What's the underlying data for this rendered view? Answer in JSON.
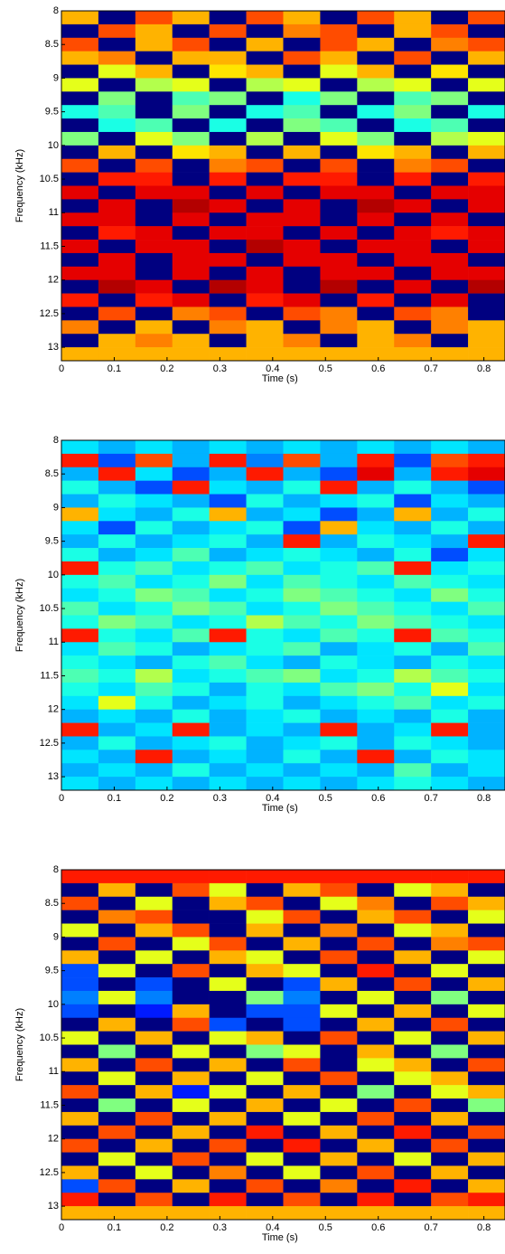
{
  "chart_data": [
    {
      "type": "heatmap",
      "xlabel": "Time (s)",
      "ylabel": "Frequency (kHz)",
      "colormap": "jet",
      "yreverse": true,
      "xlim": [
        0,
        0.84
      ],
      "ylim": [
        8,
        13.2
      ],
      "xticks": [
        0,
        0.1,
        0.2,
        0.3,
        0.4,
        0.5,
        0.6,
        0.7,
        0.8
      ],
      "yticks": [
        8,
        8.5,
        9,
        9.5,
        10,
        10.5,
        11,
        11.5,
        12,
        12.5,
        13
      ],
      "xbins": [
        0,
        0.07,
        0.14,
        0.21,
        0.28,
        0.35,
        0.42,
        0.49,
        0.56,
        0.63,
        0.7,
        0.77,
        0.84
      ],
      "ybins": [
        8,
        8.2,
        8.4,
        8.6,
        8.8,
        9,
        9.2,
        9.4,
        9.6,
        9.8,
        10,
        10.2,
        10.4,
        10.6,
        10.8,
        11,
        11.2,
        11.4,
        11.6,
        11.8,
        12,
        12.2,
        12.4,
        12.6,
        12.8,
        13,
        13.2
      ],
      "values": [
        [
          0.7,
          0,
          0.8,
          0.7,
          0,
          0.8,
          0.7,
          0,
          0.8,
          0.7,
          0,
          0.8
        ],
        [
          0,
          0.8,
          0.7,
          0,
          0.8,
          0,
          0.75,
          0.8,
          0,
          0.7,
          0.8,
          0
        ],
        [
          0.8,
          0,
          0.7,
          0.8,
          0,
          0.7,
          0,
          0.8,
          0.7,
          0,
          0.75,
          0.8
        ],
        [
          0.7,
          0.75,
          0,
          0.7,
          0.7,
          0,
          0.8,
          0.7,
          0,
          0.8,
          0,
          0.7
        ],
        [
          0,
          0.6,
          0.7,
          0,
          0.65,
          0.7,
          0,
          0.6,
          0.7,
          0,
          0.65,
          0
        ],
        [
          0.6,
          0,
          0.55,
          0.6,
          0,
          0.55,
          0.6,
          0,
          0.55,
          0.6,
          0,
          0.6
        ],
        [
          0,
          0.5,
          0,
          0.45,
          0.5,
          0,
          0.4,
          0.5,
          0,
          0.45,
          0.5,
          0
        ],
        [
          0.4,
          0.45,
          0,
          0.5,
          0,
          0.4,
          0.45,
          0,
          0.4,
          0.5,
          0,
          0.4
        ],
        [
          0,
          0.4,
          0.45,
          0,
          0.4,
          0,
          0.5,
          0.45,
          0,
          0.4,
          0.45,
          0
        ],
        [
          0.5,
          0,
          0.6,
          0.5,
          0,
          0.55,
          0,
          0.6,
          0.5,
          0,
          0.55,
          0.6
        ],
        [
          0,
          0.7,
          0,
          0.65,
          0.7,
          0,
          0.7,
          0,
          0.65,
          0.7,
          0,
          0.7
        ],
        [
          0.8,
          0,
          0.8,
          0,
          0.75,
          0.8,
          0,
          0.8,
          0,
          0.75,
          0.8,
          0
        ],
        [
          0,
          0.85,
          0.85,
          0,
          0.85,
          0,
          0.85,
          0.85,
          0,
          0.85,
          0,
          0.85
        ],
        [
          0.9,
          0,
          0.9,
          0.9,
          0,
          0.9,
          0,
          0.9,
          0.9,
          0,
          0.9,
          0.9
        ],
        [
          0,
          0.9,
          0,
          0.95,
          0.9,
          0,
          0.9,
          0,
          0.95,
          0.9,
          0,
          0.9
        ],
        [
          0.9,
          0.9,
          0,
          0.9,
          0,
          0.9,
          0.9,
          0,
          0.9,
          0,
          0.9,
          0
        ],
        [
          0,
          0.85,
          0.9,
          0,
          0.9,
          0.9,
          0,
          0.9,
          0,
          0.9,
          0.85,
          0.9
        ],
        [
          0.9,
          0,
          0.9,
          0.9,
          0,
          0.95,
          0.9,
          0,
          0.9,
          0.9,
          0,
          0.9
        ],
        [
          0,
          0.9,
          0,
          0.9,
          0.9,
          0,
          0.9,
          0.9,
          0,
          0.9,
          0.9,
          0
        ],
        [
          0.9,
          0.9,
          0,
          0.9,
          0,
          0.9,
          0,
          0.9,
          0.9,
          0,
          0.9,
          0.9
        ],
        [
          0,
          0.95,
          0.9,
          0,
          0.95,
          0.9,
          0,
          0.95,
          0,
          0.9,
          0,
          0.95
        ],
        [
          0.85,
          0,
          0.85,
          0.9,
          0,
          0.85,
          0.9,
          0,
          0.85,
          0,
          0.9,
          0
        ],
        [
          0,
          0.8,
          0,
          0.75,
          0.8,
          0,
          0.8,
          0.75,
          0,
          0.8,
          0.75,
          0
        ],
        [
          0.75,
          0,
          0.7,
          0,
          0.75,
          0.7,
          0,
          0.75,
          0.7,
          0,
          0.75,
          0.7
        ],
        [
          0,
          0.7,
          0.75,
          0.7,
          0,
          0.7,
          0.75,
          0,
          0.7,
          0.75,
          0,
          0.7
        ],
        [
          0.7,
          0.7,
          0.7,
          0.7,
          0.7,
          0.7,
          0.7,
          0.7,
          0.7,
          0.7,
          0.7,
          0.7
        ]
      ]
    },
    {
      "type": "heatmap",
      "xlabel": "Time (s)",
      "ylabel": "Frequency (kHz)",
      "colormap": "jet",
      "yreverse": true,
      "xlim": [
        0,
        0.84
      ],
      "ylim": [
        8,
        13.2
      ],
      "xticks": [
        0,
        0.1,
        0.2,
        0.3,
        0.4,
        0.5,
        0.6,
        0.7,
        0.8
      ],
      "yticks": [
        8,
        8.5,
        9,
        9.5,
        10,
        10.5,
        11,
        11.5,
        12,
        12.5,
        13
      ],
      "xbins": [
        0,
        0.07,
        0.14,
        0.21,
        0.28,
        0.35,
        0.42,
        0.49,
        0.56,
        0.63,
        0.7,
        0.77,
        0.84
      ],
      "ybins": [
        8,
        8.2,
        8.4,
        8.6,
        8.8,
        9,
        9.2,
        9.4,
        9.6,
        9.8,
        10,
        10.2,
        10.4,
        10.6,
        10.8,
        11,
        11.2,
        11.4,
        11.6,
        11.8,
        12,
        12.2,
        12.4,
        12.6,
        12.8,
        13,
        13.2
      ],
      "values": [
        [
          0.35,
          0.3,
          0.35,
          0.3,
          0.35,
          0.3,
          0.35,
          0.3,
          0.35,
          0.3,
          0.35,
          0.3
        ],
        [
          0.85,
          0.2,
          0.8,
          0.3,
          0.85,
          0.25,
          0.8,
          0.3,
          0.85,
          0.2,
          0.8,
          0.85
        ],
        [
          0.3,
          0.85,
          0.35,
          0.2,
          0.3,
          0.85,
          0.3,
          0.2,
          0.9,
          0.3,
          0.85,
          0.9
        ],
        [
          0.4,
          0.3,
          0.2,
          0.85,
          0.35,
          0.3,
          0.4,
          0.85,
          0.3,
          0.4,
          0.3,
          0.2
        ],
        [
          0.3,
          0.4,
          0.35,
          0.3,
          0.2,
          0.4,
          0.3,
          0.35,
          0.4,
          0.2,
          0.35,
          0.3
        ],
        [
          0.7,
          0.35,
          0.3,
          0.4,
          0.7,
          0.3,
          0.35,
          0.2,
          0.3,
          0.7,
          0.3,
          0.4
        ],
        [
          0.35,
          0.2,
          0.4,
          0.3,
          0.35,
          0.4,
          0.2,
          0.7,
          0.35,
          0.3,
          0.4,
          0.3
        ],
        [
          0.3,
          0.4,
          0.3,
          0.35,
          0.4,
          0.3,
          0.85,
          0.3,
          0.4,
          0.35,
          0.3,
          0.85
        ],
        [
          0.4,
          0.3,
          0.35,
          0.45,
          0.3,
          0.35,
          0.4,
          0.35,
          0.3,
          0.4,
          0.2,
          0.35
        ],
        [
          0.85,
          0.4,
          0.45,
          0.35,
          0.4,
          0.45,
          0.35,
          0.4,
          0.45,
          0.85,
          0.35,
          0.4
        ],
        [
          0.4,
          0.45,
          0.35,
          0.4,
          0.5,
          0.35,
          0.45,
          0.4,
          0.35,
          0.45,
          0.4,
          0.35
        ],
        [
          0.35,
          0.4,
          0.5,
          0.45,
          0.35,
          0.4,
          0.5,
          0.45,
          0.4,
          0.35,
          0.5,
          0.4
        ],
        [
          0.45,
          0.35,
          0.4,
          0.5,
          0.45,
          0.35,
          0.4,
          0.5,
          0.45,
          0.4,
          0.35,
          0.45
        ],
        [
          0.4,
          0.5,
          0.45,
          0.35,
          0.4,
          0.55,
          0.45,
          0.4,
          0.5,
          0.45,
          0.4,
          0.35
        ],
        [
          0.85,
          0.4,
          0.35,
          0.45,
          0.85,
          0.4,
          0.35,
          0.45,
          0.4,
          0.85,
          0.45,
          0.4
        ],
        [
          0.35,
          0.45,
          0.4,
          0.3,
          0.35,
          0.4,
          0.45,
          0.3,
          0.35,
          0.4,
          0.3,
          0.45
        ],
        [
          0.4,
          0.35,
          0.3,
          0.4,
          0.45,
          0.35,
          0.3,
          0.4,
          0.35,
          0.3,
          0.4,
          0.35
        ],
        [
          0.45,
          0.4,
          0.55,
          0.35,
          0.4,
          0.45,
          0.5,
          0.35,
          0.4,
          0.55,
          0.45,
          0.4
        ],
        [
          0.4,
          0.35,
          0.45,
          0.4,
          0.3,
          0.4,
          0.35,
          0.45,
          0.5,
          0.4,
          0.6,
          0.35
        ],
        [
          0.35,
          0.6,
          0.4,
          0.3,
          0.35,
          0.4,
          0.3,
          0.35,
          0.4,
          0.45,
          0.35,
          0.4
        ],
        [
          0.3,
          0.35,
          0.3,
          0.4,
          0.3,
          0.35,
          0.4,
          0.3,
          0.35,
          0.3,
          0.4,
          0.3
        ],
        [
          0.85,
          0.3,
          0.35,
          0.85,
          0.3,
          0.35,
          0.3,
          0.85,
          0.3,
          0.35,
          0.85,
          0.3
        ],
        [
          0.3,
          0.4,
          0.3,
          0.35,
          0.4,
          0.3,
          0.35,
          0.4,
          0.3,
          0.4,
          0.35,
          0.3
        ],
        [
          0.35,
          0.3,
          0.85,
          0.3,
          0.35,
          0.3,
          0.4,
          0.3,
          0.85,
          0.3,
          0.4,
          0.35
        ],
        [
          0.3,
          0.35,
          0.3,
          0.4,
          0.3,
          0.35,
          0.3,
          0.35,
          0.3,
          0.45,
          0.3,
          0.35
        ],
        [
          0.35,
          0.3,
          0.35,
          0.3,
          0.35,
          0.3,
          0.35,
          0.3,
          0.35,
          0.4,
          0.35,
          0.3
        ]
      ]
    },
    {
      "type": "heatmap",
      "xlabel": "Time (s)",
      "ylabel": "Frequency (kHz)",
      "colormap": "jet",
      "yreverse": true,
      "xlim": [
        0,
        0.84
      ],
      "ylim": [
        8,
        13.2
      ],
      "xticks": [
        0,
        0.1,
        0.2,
        0.3,
        0.4,
        0.5,
        0.6,
        0.7,
        0.8
      ],
      "yticks": [
        8,
        8.5,
        9,
        9.5,
        10,
        10.5,
        11,
        11.5,
        12,
        12.5,
        13
      ],
      "xbins": [
        0,
        0.07,
        0.14,
        0.21,
        0.28,
        0.35,
        0.42,
        0.49,
        0.56,
        0.63,
        0.7,
        0.77,
        0.84
      ],
      "ybins": [
        8,
        8.2,
        8.4,
        8.6,
        8.8,
        9,
        9.2,
        9.4,
        9.6,
        9.8,
        10,
        10.2,
        10.4,
        10.6,
        10.8,
        11,
        11.2,
        11.4,
        11.6,
        11.8,
        12,
        12.2,
        12.4,
        12.6,
        12.8,
        13,
        13.2
      ],
      "values": [
        [
          0.85,
          0.85,
          0.85,
          0.85,
          0.85,
          0.85,
          0.85,
          0.85,
          0.85,
          0.85,
          0.85,
          0.85
        ],
        [
          0,
          0.7,
          0,
          0.8,
          0.6,
          0,
          0.7,
          0.8,
          0,
          0.6,
          0.7,
          0
        ],
        [
          0.8,
          0,
          0.6,
          0,
          0.7,
          0.8,
          0,
          0.6,
          0.75,
          0,
          0.8,
          0.7
        ],
        [
          0,
          0.75,
          0.8,
          0,
          0,
          0.6,
          0.8,
          0,
          0.7,
          0.8,
          0,
          0.6
        ],
        [
          0.6,
          0,
          0.7,
          0.8,
          0,
          0.7,
          0,
          0.75,
          0,
          0.6,
          0.7,
          0
        ],
        [
          0,
          0.8,
          0,
          0.6,
          0.8,
          0,
          0.7,
          0,
          0.8,
          0,
          0.75,
          0.8
        ],
        [
          0.7,
          0,
          0.6,
          0,
          0.7,
          0.6,
          0,
          0.8,
          0,
          0.7,
          0,
          0.6
        ],
        [
          0.2,
          0.6,
          0,
          0.8,
          0,
          0.7,
          0.6,
          0,
          0.85,
          0,
          0.6,
          0
        ],
        [
          0.2,
          0,
          0.2,
          0,
          0.6,
          0,
          0.2,
          0.7,
          0,
          0.8,
          0,
          0.7
        ],
        [
          0.25,
          0.6,
          0.25,
          0,
          0,
          0.5,
          0.25,
          0,
          0.6,
          0,
          0.5,
          0
        ],
        [
          0.2,
          0,
          0.15,
          0.7,
          0,
          0.2,
          0.2,
          0.6,
          0,
          0.7,
          0,
          0.6
        ],
        [
          0,
          0.7,
          0,
          0.8,
          0.2,
          0,
          0.2,
          0,
          0.7,
          0,
          0.8,
          0
        ],
        [
          0.6,
          0,
          0.7,
          0,
          0.6,
          0.7,
          0,
          0.8,
          0,
          0.6,
          0,
          0.7
        ],
        [
          0,
          0.5,
          0,
          0.6,
          0,
          0.5,
          0.6,
          0,
          0.7,
          0,
          0.5,
          0
        ],
        [
          0.7,
          0,
          0.8,
          0,
          0.7,
          0,
          0.8,
          0,
          0.6,
          0.7,
          0,
          0.8
        ],
        [
          0,
          0.6,
          0,
          0.7,
          0,
          0.6,
          0,
          0.8,
          0,
          0.6,
          0.7,
          0
        ],
        [
          0.8,
          0,
          0.7,
          0.15,
          0.6,
          0,
          0.7,
          0,
          0.5,
          0,
          0.6,
          0.7
        ],
        [
          0,
          0.5,
          0,
          0.6,
          0,
          0.7,
          0,
          0.6,
          0,
          0.8,
          0,
          0.5
        ],
        [
          0.7,
          0,
          0.8,
          0,
          0.7,
          0,
          0.6,
          0,
          0.8,
          0,
          0.7,
          0
        ],
        [
          0,
          0.8,
          0,
          0.7,
          0,
          0.85,
          0,
          0.7,
          0,
          0.85,
          0,
          0.8
        ],
        [
          0.8,
          0,
          0.7,
          0,
          0.8,
          0,
          0.85,
          0,
          0.7,
          0,
          0.8,
          0
        ],
        [
          0,
          0.6,
          0,
          0.8,
          0,
          0.6,
          0,
          0.7,
          0,
          0.6,
          0,
          0.7
        ],
        [
          0.7,
          0,
          0.6,
          0,
          0.75,
          0,
          0.6,
          0,
          0.8,
          0,
          0.7,
          0
        ],
        [
          0.2,
          0.8,
          0,
          0.7,
          0,
          0.8,
          0,
          0.75,
          0,
          0.85,
          0,
          0.7
        ],
        [
          0.85,
          0,
          0.8,
          0,
          0.85,
          0,
          0.8,
          0,
          0.85,
          0,
          0.8,
          0.85
        ],
        [
          0.7,
          0.7,
          0.7,
          0.7,
          0.7,
          0.7,
          0.7,
          0.7,
          0.7,
          0.7,
          0.7,
          0.7
        ]
      ]
    }
  ]
}
